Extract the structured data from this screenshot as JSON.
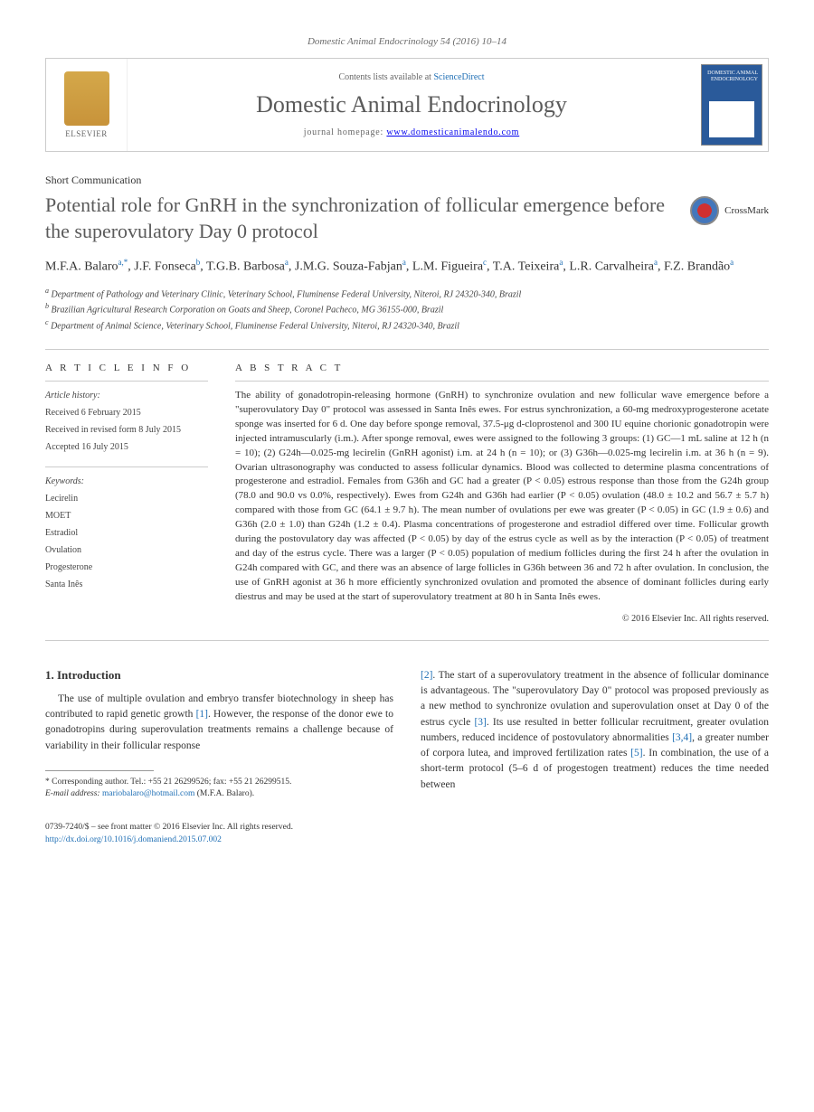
{
  "journal_ref": "Domestic Animal Endocrinology 54 (2016) 10–14",
  "header": {
    "elsevier_label": "ELSEVIER",
    "contents_prefix": "Contents lists available at ",
    "contents_link": "ScienceDirect",
    "journal_name": "Domestic Animal Endocrinology",
    "homepage_prefix": "journal homepage: ",
    "homepage_url": "www.domesticanimalendo.com",
    "cover_title": "DOMESTIC ANIMAL ENDOCRINOLOGY"
  },
  "article_type": "Short Communication",
  "title": "Potential role for GnRH in the synchronization of follicular emergence before the superovulatory Day 0 protocol",
  "crossmark_label": "CrossMark",
  "authors_html": "M.F.A. Balaro<sup>a,*</sup>, J.F. Fonseca<sup>b</sup>, T.G.B. Barbosa<sup>a</sup>, J.M.G. Souza-Fabjan<sup>a</sup>, L.M. Figueira<sup>c</sup>, T.A. Teixeira<sup>a</sup>, L.R. Carvalheira<sup>a</sup>, F.Z. Brandão<sup>a</sup>",
  "affiliations": [
    "Department of Pathology and Veterinary Clinic, Veterinary School, Fluminense Federal University, Niteroi, RJ 24320-340, Brazil",
    "Brazilian Agricultural Research Corporation on Goats and Sheep, Coronel Pacheco, MG 36155-000, Brazil",
    "Department of Animal Science, Veterinary School, Fluminense Federal University, Niteroi, RJ 24320-340, Brazil"
  ],
  "affiliation_labels": [
    "a",
    "b",
    "c"
  ],
  "info": {
    "heading": "A R T I C L E  I N F O",
    "history_label": "Article history:",
    "received": "Received 6 February 2015",
    "revised": "Received in revised form 8 July 2015",
    "accepted": "Accepted 16 July 2015",
    "keywords_label": "Keywords:",
    "keywords": [
      "Lecirelin",
      "MOET",
      "Estradiol",
      "Ovulation",
      "Progesterone",
      "Santa Inês"
    ]
  },
  "abstract": {
    "heading": "A B S T R A C T",
    "text": "The ability of gonadotropin-releasing hormone (GnRH) to synchronize ovulation and new follicular wave emergence before a \"superovulatory Day 0\" protocol was assessed in Santa Inês ewes. For estrus synchronization, a 60-mg medroxyprogesterone acetate sponge was inserted for 6 d. One day before sponge removal, 37.5-μg d-cloprostenol and 300 IU equine chorionic gonadotropin were injected intramuscularly (i.m.). After sponge removal, ewes were assigned to the following 3 groups: (1) GC—1 mL saline at 12 h (n = 10); (2) G24h—0.025-mg lecirelin (GnRH agonist) i.m. at 24 h (n = 10); or (3) G36h—0.025-mg lecirelin i.m. at 36 h (n = 9). Ovarian ultrasonography was conducted to assess follicular dynamics. Blood was collected to determine plasma concentrations of progesterone and estradiol. Females from G36h and GC had a greater (P < 0.05) estrous response than those from the G24h group (78.0 and 90.0 vs 0.0%, respectively). Ewes from G24h and G36h had earlier (P < 0.05) ovulation (48.0 ± 10.2 and 56.7 ± 5.7 h) compared with those from GC (64.1 ± 9.7 h). The mean number of ovulations per ewe was greater (P < 0.05) in GC (1.9 ± 0.6) and G36h (2.0 ± 1.0) than G24h (1.2 ± 0.4). Plasma concentrations of progesterone and estradiol differed over time. Follicular growth during the postovulatory day was affected (P < 0.05) by day of the estrus cycle as well as by the interaction (P < 0.05) of treatment and day of the estrus cycle. There was a larger (P < 0.05) population of medium follicles during the first 24 h after the ovulation in G24h compared with GC, and there was an absence of large follicles in G36h between 36 and 72 h after ovulation. In conclusion, the use of GnRH agonist at 36 h more efficiently synchronized ovulation and promoted the absence of dominant follicles during early diestrus and may be used at the start of superovulatory treatment at 80 h in Santa Inês ewes.",
    "copyright": "© 2016 Elsevier Inc. All rights reserved."
  },
  "section1": {
    "heading": "1. Introduction",
    "para1": "The use of multiple ovulation and embryo transfer biotechnology in sheep has contributed to rapid genetic growth [1]. However, the response of the donor ewe to gonadotropins during superovulation treatments remains a challenge because of variability in their follicular response",
    "para2": "[2]. The start of a superovulatory treatment in the absence of follicular dominance is advantageous. The \"superovulatory Day 0\" protocol was proposed previously as a new method to synchronize ovulation and superovulation onset at Day 0 of the estrus cycle [3]. Its use resulted in better follicular recruitment, greater ovulation numbers, reduced incidence of postovulatory abnormalities [3,4], a greater number of corpora lutea, and improved fertilization rates [5]. In combination, the use of a short-term protocol (5–6 d of progestogen treatment) reduces the time needed between"
  },
  "footnote": {
    "corr": "* Corresponding author. Tel.: +55 21 26299526; fax: +55 21 26299515.",
    "email_label": "E-mail address:",
    "email": "mariobalaro@hotmail.com",
    "email_suffix": "(M.F.A. Balaro)."
  },
  "footer": {
    "issn": "0739-7240/$ – see front matter © 2016 Elsevier Inc. All rights reserved.",
    "doi": "http://dx.doi.org/10.1016/j.domaniend.2015.07.002"
  },
  "colors": {
    "link": "#1f6fb5",
    "text": "#333333",
    "muted": "#666666",
    "border": "#cccccc"
  }
}
